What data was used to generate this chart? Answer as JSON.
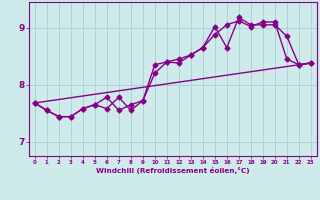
{
  "title": "",
  "xlabel": "Windchill (Refroidissement éolien,°C)",
  "ylabel": "",
  "background_color": "#ceeaea",
  "line_color": "#880088",
  "grid_color": "#aad4d4",
  "xlim": [
    -0.5,
    23.5
  ],
  "ylim": [
    6.75,
    9.45
  ],
  "yticks": [
    7,
    8,
    9
  ],
  "xticks": [
    0,
    1,
    2,
    3,
    4,
    5,
    6,
    7,
    8,
    9,
    10,
    11,
    12,
    13,
    14,
    15,
    16,
    17,
    18,
    19,
    20,
    21,
    22,
    23
  ],
  "series1_x": [
    0,
    1,
    2,
    3,
    4,
    5,
    6,
    7,
    8,
    9,
    10,
    11,
    12,
    13,
    14,
    15,
    16,
    17,
    18,
    19,
    20,
    21,
    22,
    23
  ],
  "series1_y": [
    7.68,
    7.55,
    7.44,
    7.44,
    7.58,
    7.65,
    7.78,
    7.55,
    7.65,
    7.72,
    8.35,
    8.4,
    8.45,
    8.52,
    8.65,
    8.88,
    9.05,
    9.12,
    9.02,
    9.1,
    9.1,
    8.45,
    8.35,
    8.38
  ],
  "series2_x": [
    0,
    1,
    2,
    3,
    4,
    5,
    6,
    7,
    8,
    9,
    10,
    11,
    12,
    13,
    14,
    15,
    16,
    17,
    18,
    19,
    20,
    21,
    22,
    23
  ],
  "series2_y": [
    7.68,
    7.55,
    7.44,
    7.44,
    7.58,
    7.65,
    7.58,
    7.78,
    7.55,
    7.72,
    8.2,
    8.4,
    8.38,
    8.52,
    8.65,
    9.02,
    8.65,
    9.18,
    9.05,
    9.05,
    9.05,
    8.85,
    8.35,
    8.38
  ],
  "series3_x": [
    0,
    23
  ],
  "series3_y": [
    7.68,
    8.38
  ],
  "marker": "D",
  "markersize": 2.5,
  "linewidth": 1.0
}
